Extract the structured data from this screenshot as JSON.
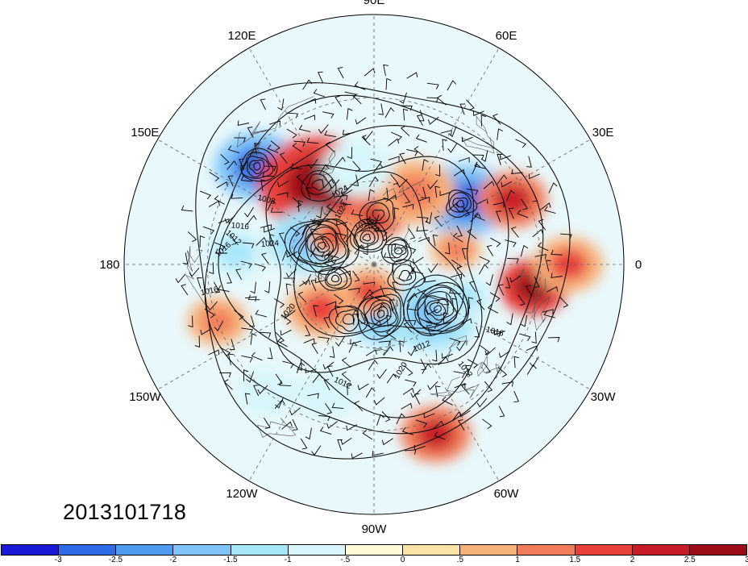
{
  "timestamp": "2013101718",
  "longitude_labels": [
    {
      "text": "90E",
      "lon": 90
    },
    {
      "text": "60E",
      "lon": 60
    },
    {
      "text": "30E",
      "lon": 30
    },
    {
      "text": "0",
      "lon": 0
    },
    {
      "text": "30W",
      "lon": -30
    },
    {
      "text": "60W",
      "lon": -60
    },
    {
      "text": "90W",
      "lon": -90
    },
    {
      "text": "120W",
      "lon": -120
    },
    {
      "text": "150W",
      "lon": -150
    },
    {
      "text": "180",
      "lon": 180
    },
    {
      "text": "150E",
      "lon": 150
    },
    {
      "text": "120E",
      "lon": 120
    }
  ],
  "contour_labels": [
    "1024",
    "1016",
    "1008",
    "1020",
    "1024",
    "1016",
    "1012",
    "1016",
    "1024",
    "1004",
    "1020",
    "1016",
    "1012",
    "1020",
    "1012",
    "1016",
    "1012"
  ],
  "colorbar": {
    "colors": [
      "#1a1ad6",
      "#2e6be6",
      "#4f9bf0",
      "#7fc4f8",
      "#a8e6fa",
      "#d8f6fb",
      "#fff9d6",
      "#fbe3a6",
      "#f7b27a",
      "#f27d5a",
      "#e8403a",
      "#c81d26",
      "#9c0d18"
    ],
    "tick_labels": [
      "-3",
      "-2.5",
      "-2",
      "-1.5",
      "-1",
      "-.5",
      "0",
      ".5",
      "1",
      "1.5",
      "2",
      "2.5",
      "3"
    ]
  },
  "anomaly_blobs": [
    {
      "lon": 140,
      "lat": 35,
      "r": 0.085,
      "value": -3
    },
    {
      "lon": 35,
      "lat": 50,
      "r": 0.09,
      "value": -3
    },
    {
      "lon": 125,
      "lat": 55,
      "r": 0.12,
      "value": 2.5
    },
    {
      "lon": 85,
      "lat": 72,
      "r": 0.06,
      "value": 2
    },
    {
      "lon": 25,
      "lat": 35,
      "r": 0.07,
      "value": 2
    },
    {
      "lon": -8,
      "lat": 32,
      "r": 0.07,
      "value": 2.5
    },
    {
      "lon": 160,
      "lat": 65,
      "r": 0.08,
      "value": -2
    },
    {
      "lon": 145,
      "lat": 72,
      "r": 0.05,
      "value": 1.5
    },
    {
      "lon": -80,
      "lat": 70,
      "r": 0.07,
      "value": -2
    },
    {
      "lon": -40,
      "lat": 62,
      "r": 0.09,
      "value": -2
    },
    {
      "lon": -140,
      "lat": 65,
      "r": 0.07,
      "value": 1.5
    },
    {
      "lon": -100,
      "lat": 80,
      "r": 0.06,
      "value": 1.5
    },
    {
      "lon": -70,
      "lat": 25,
      "r": 0.07,
      "value": 2
    },
    {
      "lon": -160,
      "lat": 30,
      "r": 0.06,
      "value": 1
    },
    {
      "lon": 175,
      "lat": 40,
      "r": 0.07,
      "value": -1.5
    },
    {
      "lon": 60,
      "lat": 60,
      "r": 0.08,
      "value": 1
    },
    {
      "lon": 100,
      "lat": 55,
      "r": 0.07,
      "value": -1
    },
    {
      "lon": -20,
      "lat": 55,
      "r": 0.06,
      "value": -1.5
    },
    {
      "lon": 0,
      "lat": 20,
      "r": 0.07,
      "value": 1.5
    },
    {
      "lon": -110,
      "lat": 40,
      "r": 0.06,
      "value": -1
    },
    {
      "lon": 10,
      "lat": 60,
      "r": 0.05,
      "value": 1
    },
    {
      "lon": -130,
      "lat": 30,
      "r": 0.06,
      "value": -1
    }
  ],
  "lows": [
    {
      "lon": 140,
      "lat": 35,
      "rings": 5
    },
    {
      "lon": 35,
      "lat": 52,
      "rings": 4
    },
    {
      "lon": 160,
      "lat": 70,
      "rings": 9
    },
    {
      "lon": -35,
      "lat": 62,
      "rings": 9
    },
    {
      "lon": 105,
      "lat": 80,
      "rings": 5
    },
    {
      "lon": -82,
      "lat": 72,
      "rings": 7
    },
    {
      "lon": -160,
      "lat": 75,
      "rings": 4
    },
    {
      "lon": 30,
      "lat": 80,
      "rings": 4
    }
  ],
  "highs": [
    {
      "lon": 125,
      "lat": 55,
      "rings": 3
    },
    {
      "lon": 85,
      "lat": 72,
      "rings": 3
    },
    {
      "lon": -20,
      "lat": 78,
      "rings": 3
    },
    {
      "lon": -115,
      "lat": 68,
      "rings": 3
    }
  ]
}
